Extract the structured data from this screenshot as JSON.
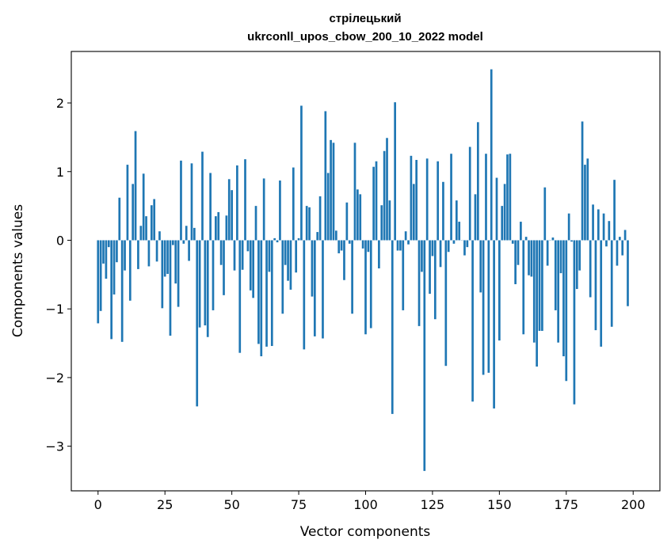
{
  "chart_data": {
    "type": "bar",
    "title_line1": "стрілецький",
    "title_line2": "ukrconll_upos_cbow_200_10_2022 model",
    "xlabel": "Vector components",
    "ylabel": "Components values",
    "xlim": [
      -10,
      210
    ],
    "ylim": [
      -3.65,
      2.75
    ],
    "xticks": [
      0,
      25,
      50,
      75,
      100,
      125,
      150,
      175,
      200
    ],
    "yticks": [
      -3,
      -2,
      -1,
      0,
      1,
      2
    ],
    "ytick_labels": [
      "−3",
      "−2",
      "−1",
      "0",
      "1",
      "2"
    ],
    "color": "#1f77b4",
    "values": [
      -1.21,
      -1.03,
      -0.34,
      -0.56,
      -0.1,
      -1.44,
      -0.79,
      -0.32,
      0.62,
      -1.48,
      -0.44,
      1.1,
      -0.88,
      0.82,
      1.59,
      -0.42,
      0.21,
      0.97,
      0.35,
      -0.38,
      0.51,
      0.6,
      -0.31,
      0.13,
      -0.99,
      -0.53,
      -0.49,
      -1.39,
      -0.07,
      -0.63,
      -0.97,
      1.16,
      -0.05,
      0.21,
      -0.3,
      1.12,
      0.18,
      -2.42,
      -1.27,
      1.29,
      -1.24,
      -1.41,
      0.98,
      -1.02,
      0.35,
      0.41,
      -0.36,
      -0.8,
      0.36,
      0.89,
      0.73,
      -0.44,
      1.09,
      -1.64,
      -0.43,
      1.18,
      -0.16,
      -0.73,
      -0.84,
      0.5,
      -1.51,
      -1.69,
      0.9,
      -1.55,
      -0.46,
      -1.54,
      0.03,
      -0.03,
      0.87,
      -1.07,
      -0.36,
      -0.59,
      -0.72,
      1.06,
      -0.47,
      0.03,
      1.96,
      -1.59,
      0.5,
      0.48,
      -0.82,
      -1.4,
      0.12,
      0.64,
      -1.43,
      1.88,
      0.98,
      1.46,
      1.42,
      0.14,
      -0.19,
      -0.15,
      -0.58,
      0.55,
      -0.05,
      -1.07,
      1.42,
      0.74,
      0.67,
      -0.12,
      -1.37,
      -0.17,
      -1.28,
      1.07,
      1.15,
      -0.41,
      0.51,
      1.3,
      1.49,
      0.58,
      -2.53,
      2.01,
      -0.15,
      -0.15,
      -1.02,
      0.13,
      -0.06,
      1.23,
      0.82,
      1.17,
      -1.25,
      -0.46,
      -3.36,
      1.19,
      -0.78,
      -0.23,
      -1.15,
      1.15,
      -0.39,
      0.85,
      -1.83,
      -0.17,
      1.26,
      -0.05,
      0.58,
      0.27,
      0.0,
      -0.22,
      -0.1,
      1.36,
      -2.35,
      0.67,
      1.72,
      -0.76,
      -1.96,
      1.26,
      -1.93,
      2.49,
      -2.45,
      0.91,
      -1.46,
      0.5,
      0.82,
      1.25,
      1.26,
      -0.05,
      -0.64,
      -0.36,
      0.27,
      -1.37,
      0.05,
      -0.51,
      -0.53,
      -1.49,
      -1.84,
      -1.32,
      -1.32,
      0.77,
      -0.37,
      0.0,
      0.04,
      -1.02,
      -1.49,
      -0.48,
      -1.69,
      -2.05,
      0.39,
      -0.02,
      -2.39,
      -0.71,
      -0.44,
      1.73,
      1.1,
      1.19,
      -0.83,
      0.52,
      -1.31,
      0.45,
      -1.55,
      0.39,
      -0.09,
      0.28,
      -1.26,
      0.88,
      -0.37,
      0.05,
      -0.22,
      0.15,
      -0.96
    ]
  }
}
